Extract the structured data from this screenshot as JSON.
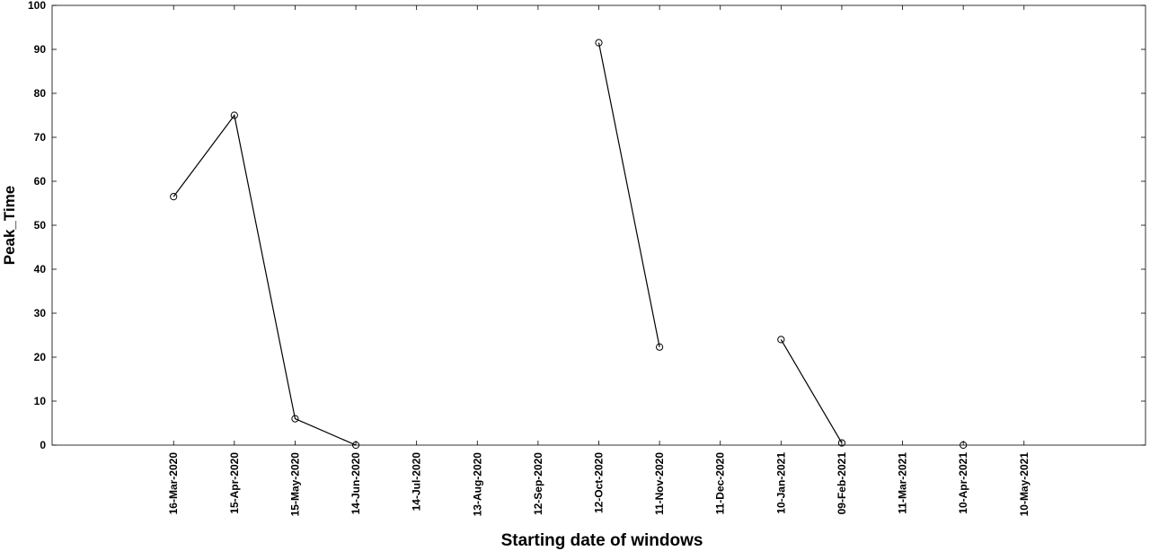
{
  "chart_data": {
    "type": "line",
    "title": "",
    "xlabel": "Starting date of windows",
    "ylabel": "Peak_Time",
    "ylim": [
      0,
      100
    ],
    "yticks": [
      0,
      10,
      20,
      30,
      40,
      50,
      60,
      70,
      80,
      90,
      100
    ],
    "xlim": [
      "2020-01-16",
      "2021-07-09"
    ],
    "xtick_labels": [
      "16-Mar-2020",
      "15-Apr-2020",
      "15-May-2020",
      "14-Jun-2020",
      "14-Jul-2020",
      "13-Aug-2020",
      "12-Sep-2020",
      "12-Oct-2020",
      "11-Nov-2020",
      "11-Dec-2020",
      "10-Jan-2021",
      "09-Feb-2021",
      "11-Mar-2021",
      "10-Apr-2021",
      "10-May-2021"
    ],
    "grid": false,
    "line_color": "#000000",
    "marker": "circle",
    "series": [
      {
        "x": [
          "16-Mar-2020",
          "15-Apr-2020",
          "15-May-2020",
          "14-Jun-2020",
          "14-Jul-2020",
          "13-Aug-2020",
          "12-Sep-2020",
          "12-Oct-2020",
          "11-Nov-2020",
          "11-Dec-2020",
          "10-Jan-2021",
          "09-Feb-2021",
          "11-Mar-2021",
          "10-Apr-2021",
          "10-May-2021"
        ],
        "values": [
          56.5,
          75,
          6,
          0,
          null,
          null,
          null,
          91.5,
          22.3,
          null,
          24,
          0.5,
          null,
          0,
          null
        ]
      }
    ]
  }
}
